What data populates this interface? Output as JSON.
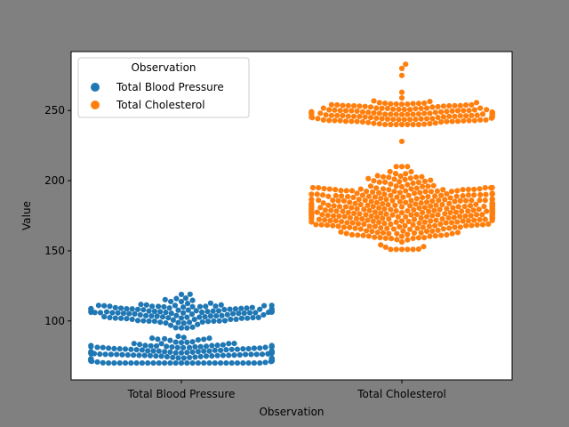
{
  "chart_data": {
    "type": "scatter",
    "subtype": "swarm",
    "title": "",
    "xlabel": "Observation",
    "ylabel": "Value",
    "categories": [
      "Total Blood Pressure",
      "Total Cholesterol"
    ],
    "ylim": [
      58,
      292
    ],
    "yticks": [
      100,
      150,
      200,
      250
    ],
    "grid": false,
    "legend": {
      "title": "Observation",
      "placement": "top-left",
      "entries": [
        "Total Blood Pressure",
        "Total Cholesterol"
      ]
    },
    "colors": {
      "figure_background": "#808080",
      "plot_background": "#ffffff",
      "Total Blood Pressure": "#1f77b4",
      "Total Cholesterol": "#ff7f0e"
    },
    "series": [
      {
        "name": "Total Blood Pressure",
        "category": "Total Blood Pressure",
        "clusters": [
          {
            "center": 76,
            "spread": 6,
            "count": 185,
            "min": 70,
            "max": 89
          },
          {
            "center": 106,
            "spread": 5,
            "count": 130,
            "min": 95,
            "max": 119
          }
        ]
      },
      {
        "name": "Total Cholesterol",
        "category": "Total Cholesterol",
        "clusters": [
          {
            "center": 248,
            "spread": 5,
            "count": 150,
            "min": 240,
            "max": 259
          },
          {
            "center": 180,
            "spread": 12,
            "count": 420,
            "min": 151,
            "max": 210
          }
        ],
        "points": [
          228,
          263,
          275,
          280,
          283
        ]
      }
    ]
  }
}
